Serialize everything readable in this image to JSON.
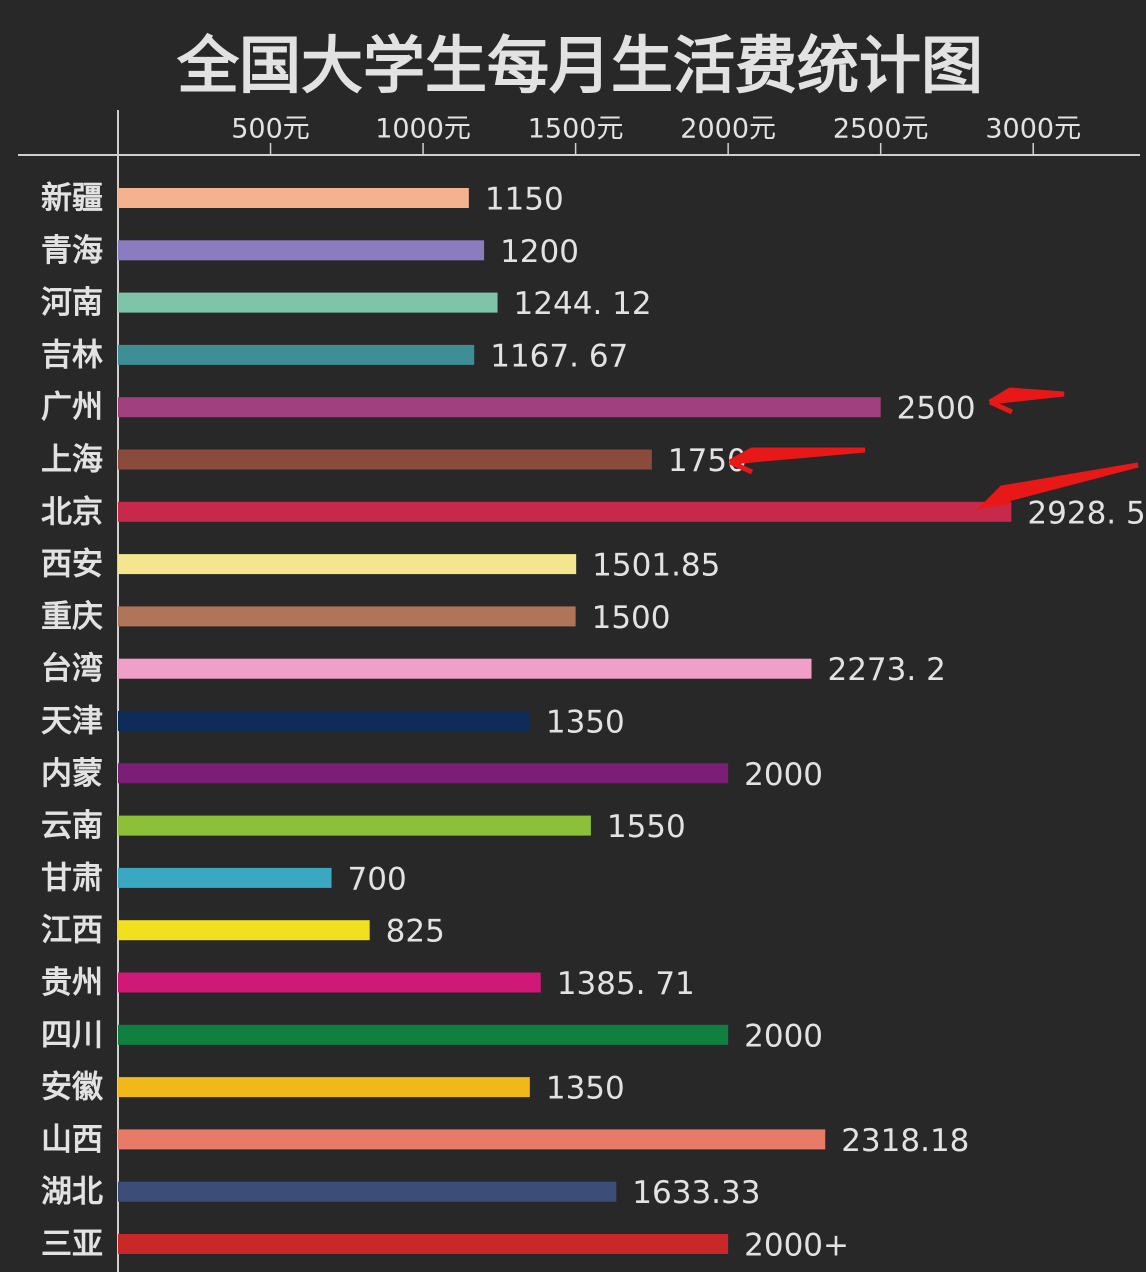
{
  "chart_data": {
    "type": "barh",
    "title": "全国大学生每月生活费统计图",
    "categories": [
      "新疆",
      "青海",
      "河南",
      "吉林",
      "广州",
      "上海",
      "北京",
      "西安",
      "重庆",
      "台湾",
      "天津",
      "内蒙",
      "云南",
      "甘肃",
      "江西",
      "贵州",
      "四川",
      "安徽",
      "山西",
      "湖北",
      "三亚"
    ],
    "values": [
      1150,
      1200,
      1244.12,
      1167.67,
      2500,
      1750,
      2928.5,
      1501.85,
      1500,
      2273.2,
      1350,
      2000,
      1550,
      700,
      825,
      1385.71,
      2000,
      1350,
      2318.18,
      1633.33,
      2000
    ],
    "value_labels": [
      "1150",
      "1200",
      "1244. 12",
      "1167. 67",
      "2500",
      "1750",
      "2928. 5",
      "1501.85",
      "1500",
      "2273. 2",
      "1350",
      "2000",
      "1550",
      "700",
      "825",
      "1385. 71",
      "2000",
      "1350",
      "2318.18",
      "1633.33",
      "2000+"
    ],
    "colors": [
      "#f4b38e",
      "#8b7cc0",
      "#7ec4a8",
      "#3d8f95",
      "#a0407e",
      "#8a4a3c",
      "#c8284a",
      "#f5e58e",
      "#b07458",
      "#f0a0c8",
      "#0e2c5a",
      "#7a1e78",
      "#8cc038",
      "#3aa8c0",
      "#f0e020",
      "#d01878",
      "#108040",
      "#f0b818",
      "#e87a68",
      "#3c4e78",
      "#c82828"
    ],
    "xlim": [
      0,
      3350
    ],
    "xticks": [
      {
        "value": 500,
        "label": "500元"
      },
      {
        "value": 1000,
        "label": "1000元"
      },
      {
        "value": 1500,
        "label": "1500元"
      },
      {
        "value": 2000,
        "label": "2000元"
      },
      {
        "value": 2500,
        "label": "2500元"
      },
      {
        "value": 3000,
        "label": "3000元"
      }
    ]
  }
}
